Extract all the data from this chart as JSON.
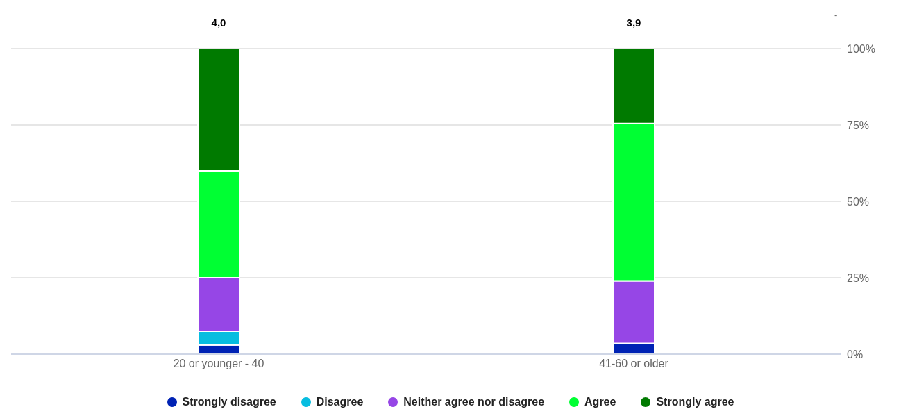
{
  "chart_data": {
    "type": "bar",
    "stacked": true,
    "categories": [
      "20 or younger - 40",
      "41-60 or older"
    ],
    "series": [
      {
        "name": "Strongly disagree",
        "color": "#0022b4",
        "values": [
          3,
          3.5
        ]
      },
      {
        "name": "Disagree",
        "color": "#07bde0",
        "values": [
          4.5,
          0
        ]
      },
      {
        "name": "Neither agree nor disagree",
        "color": "#9646e6",
        "values": [
          17.5,
          20.5
        ]
      },
      {
        "name": "Agree",
        "color": "#00ff33",
        "values": [
          35,
          51.5
        ]
      },
      {
        "name": "Strongly agree",
        "color": "#007a00",
        "values": [
          40,
          24.5
        ]
      }
    ],
    "ylim": [
      0,
      100
    ],
    "yticks": [
      {
        "value": 0,
        "label": "0%"
      },
      {
        "value": 25,
        "label": "25%"
      },
      {
        "value": 50,
        "label": "50%"
      },
      {
        "value": 75,
        "label": "75%"
      },
      {
        "value": 100,
        "label": "100%"
      }
    ],
    "grid": "y",
    "legend": "bottom",
    "marker": "circle",
    "annotations": [
      "4,0",
      "3,9",
      "-"
    ]
  }
}
